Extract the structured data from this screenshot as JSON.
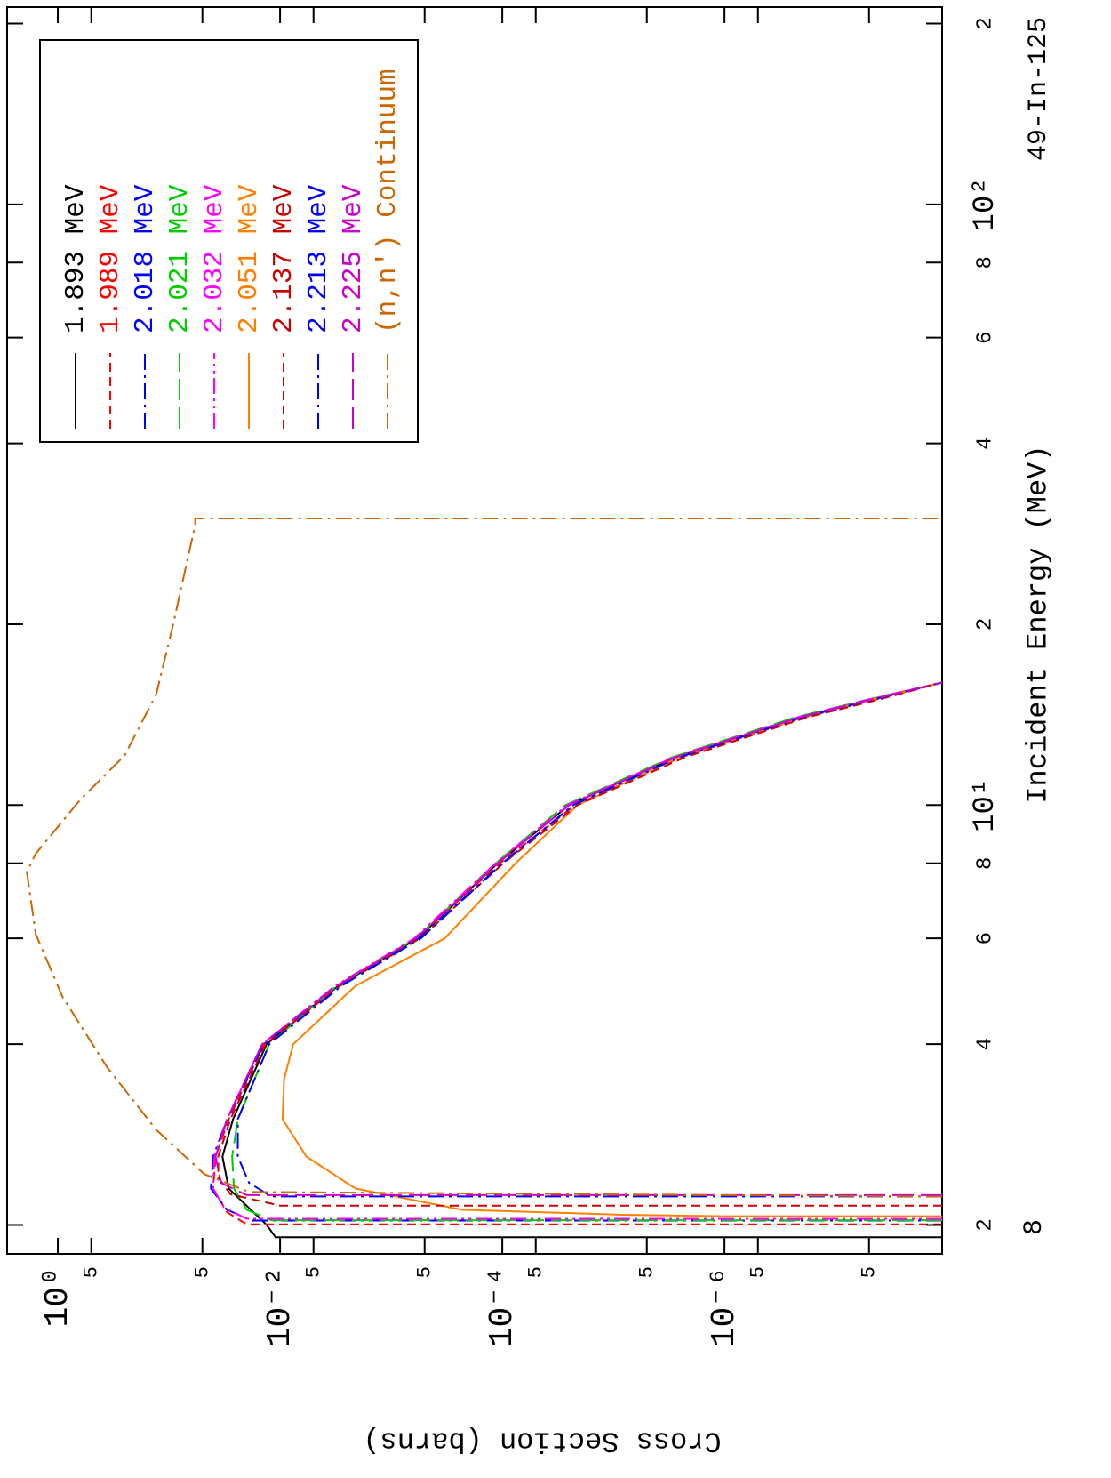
{
  "chart_data": {
    "type": "line",
    "xlabel": "Incident Energy (MeV)",
    "ylabel": "Cross Section (barns)",
    "annotations": [
      "49-In-125",
      "8"
    ],
    "xscale": "log",
    "yscale": "log",
    "xlim": [
      1.79,
      213
    ],
    "ylim": [
      1.1e-08,
      2.86
    ],
    "xticks": [
      2,
      4,
      6,
      8,
      {
        "value": 10,
        "label": "10¹"
      },
      {
        "value": 20,
        "label": "2"
      },
      {
        "value": 40,
        "label": "4"
      },
      {
        "value": 60,
        "label": "6"
      },
      {
        "value": 80,
        "label": "8"
      },
      {
        "value": 100,
        "label": "10²"
      },
      {
        "value": 200,
        "label": "2"
      }
    ],
    "yticks": [
      {
        "value": 1,
        "label": "10⁰"
      },
      {
        "value": 0.5,
        "label": "5"
      },
      {
        "value": 0.05,
        "label": "5"
      },
      {
        "value": 0.01,
        "label": "10⁻²"
      },
      {
        "value": 0.005,
        "label": "5"
      },
      {
        "value": 0.0005,
        "label": "5"
      },
      {
        "value": 0.0001,
        "label": "10⁻⁴"
      },
      {
        "value": 5e-05,
        "label": "5"
      },
      {
        "value": 5e-06,
        "label": "5"
      },
      {
        "value": 1e-06,
        "label": "10⁻⁶"
      },
      {
        "value": 5e-07,
        "label": "5"
      },
      {
        "value": 5e-08,
        "label": "5"
      }
    ],
    "legend": "upper right",
    "series": [
      {
        "name": "1.893 MeV",
        "color": "#000000",
        "style": "solid",
        "x": [
          1.908,
          1.908,
          2.0,
          2.3,
          2.6,
          3,
          4,
          5,
          6,
          8,
          10,
          12,
          14,
          15,
          16
        ],
        "values": [
          1.1e-08,
          0.011,
          0.0132,
          0.029,
          0.033,
          0.0265,
          0.0132,
          0.003,
          0.00058,
          0.00011,
          2.5e-05,
          2.8e-06,
          2.1e-07,
          4.8e-08,
          1.1e-08
        ]
      },
      {
        "name": "1.989 MeV",
        "color": "#ff0000",
        "style": "dashed",
        "x": [
          2.005,
          2.005,
          2.1,
          2.3,
          2.6,
          3,
          4,
          5,
          6,
          8,
          10,
          12,
          14,
          15,
          16
        ],
        "values": [
          1.1e-08,
          0.02,
          0.03,
          0.04,
          0.038,
          0.029,
          0.014,
          0.0031,
          0.0006,
          0.000105,
          2.2e-05,
          2.5e-06,
          1.9e-07,
          4.3e-08,
          1.1e-08
        ]
      },
      {
        "name": "2.018 MeV",
        "color": "#0000ff",
        "style": "dashdot",
        "x": [
          2.034,
          2.034,
          2.12,
          2.3,
          2.6,
          3,
          4,
          5,
          6,
          8,
          10,
          12,
          14,
          15,
          16
        ],
        "values": [
          1.1e-08,
          0.018,
          0.03,
          0.042,
          0.04,
          0.03,
          0.014,
          0.003,
          0.00056,
          0.0001,
          2.3e-05,
          2.6e-06,
          2e-07,
          4.5e-08,
          1.1e-08
        ]
      },
      {
        "name": "2.021 MeV",
        "color": "#00cc00",
        "style": "longdash",
        "x": [
          2.037,
          2.037,
          2.12,
          2.3,
          2.6,
          3,
          4,
          5,
          6,
          8,
          10,
          12,
          14,
          15,
          16
        ],
        "values": [
          1.1e-08,
          0.012,
          0.02,
          0.026,
          0.027,
          0.024,
          0.0125,
          0.0031,
          0.0006,
          0.000115,
          2.7e-05,
          3e-06,
          2.3e-07,
          5e-08,
          1.1e-08
        ]
      },
      {
        "name": "2.032 MeV",
        "color": "#ff00ff",
        "style": "dashdotdot",
        "x": [
          2.048,
          2.048,
          2.14,
          2.3,
          2.6,
          3,
          4,
          5,
          6,
          8,
          10,
          12,
          14,
          15,
          16
        ],
        "values": [
          1.1e-08,
          0.02,
          0.032,
          0.04,
          0.039,
          0.03,
          0.0145,
          0.0032,
          0.00062,
          0.000115,
          2.6e-05,
          2.9e-06,
          2.2e-07,
          5e-08,
          1.1e-08
        ]
      },
      {
        "name": "2.051 MeV",
        "color": "#ff8000",
        "style": "solid",
        "x": [
          2.068,
          2.068,
          2.08,
          2.12,
          2.3,
          2.6,
          3,
          3.5,
          4,
          5,
          6,
          8,
          10,
          12,
          14,
          15,
          16
        ],
        "values": [
          1.1e-08,
          1e-06,
          8.3e-06,
          0.00023,
          0.0021,
          0.0058,
          0.0095,
          0.0092,
          0.0076,
          0.0021,
          0.00033,
          7.6e-05,
          2.1e-05,
          2.6e-06,
          2e-07,
          4.6e-08,
          1.1e-08
        ]
      },
      {
        "name": "2.137 MeV",
        "color": "#cc0000",
        "style": "dashed",
        "x": [
          2.154,
          2.154,
          2.25,
          2.4,
          2.6,
          3,
          4,
          5,
          6,
          8,
          10,
          12,
          14,
          15,
          16
        ],
        "values": [
          1.1e-08,
          0.01,
          0.028,
          0.036,
          0.036,
          0.028,
          0.0135,
          0.0029,
          0.00055,
          9.8e-05,
          2.1e-05,
          2.3e-06,
          1.8e-07,
          4e-08,
          1.1e-08
        ]
      },
      {
        "name": "2.213 MeV",
        "color": "#0000ff",
        "style": "dashdot",
        "x": [
          2.231,
          2.231,
          2.35,
          2.6,
          3,
          4,
          5,
          6,
          8,
          10,
          12,
          14,
          15,
          16
        ],
        "values": [
          1.1e-08,
          0.012,
          0.019,
          0.024,
          0.024,
          0.0125,
          0.0028,
          0.00054,
          0.0001,
          2.3e-05,
          2.6e-06,
          2e-07,
          4.5e-08,
          1.1e-08
        ]
      },
      {
        "name": "2.225 MeV",
        "color": "#cc00cc",
        "style": "longdash",
        "x": [
          2.243,
          2.243,
          2.35,
          2.6,
          3,
          4,
          5,
          6,
          8,
          10,
          12,
          14,
          15,
          16
        ],
        "values": [
          1.1e-08,
          0.02,
          0.034,
          0.038,
          0.03,
          0.0145,
          0.0031,
          0.0006,
          0.00011,
          2.5e-05,
          2.8e-06,
          2.1e-07,
          4.7e-08,
          1.1e-08
        ]
      },
      {
        "name": "(n,n') Continuum",
        "color": "#cc6600",
        "style": "dashdot",
        "x": [
          2.23,
          2.27,
          2.43,
          2.88,
          3.66,
          4.8,
          6.1,
          7.74,
          8.3,
          10.2,
          12.1,
          15.3,
          20.1,
          29.3,
          30,
          30
        ],
        "values": [
          1.1e-08,
          0.019,
          0.048,
          0.13,
          0.36,
          0.91,
          1.58,
          1.9,
          1.58,
          0.63,
          0.25,
          0.13,
          0.091,
          0.058,
          0.058,
          1.1e-08
        ]
      }
    ]
  }
}
